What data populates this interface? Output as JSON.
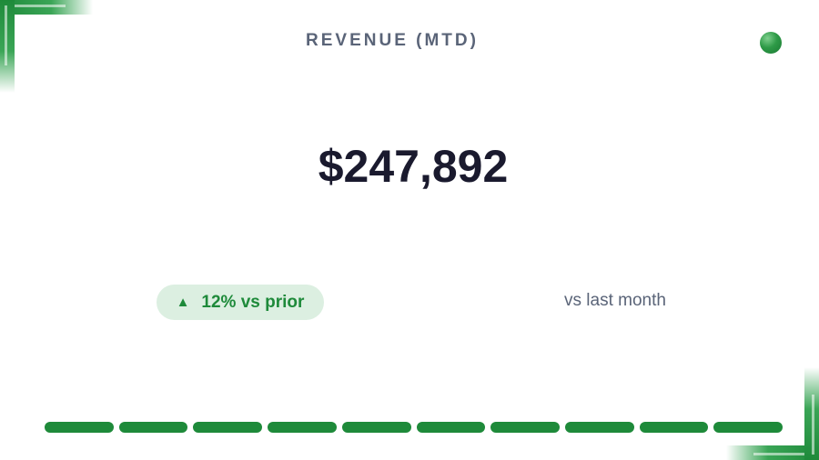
{
  "header": {
    "title": "REVENUE (MTD)"
  },
  "metric": {
    "value": "$247,892"
  },
  "change": {
    "arrow": "▲",
    "label": "12% vs prior",
    "icon": "arrow-up-icon",
    "color": "#1e8a3a"
  },
  "comparison": {
    "label": "vs last month"
  },
  "status_indicator": {
    "color": "#2e9a47"
  },
  "progress": {
    "segments_total": 10,
    "segments_filled": 10,
    "fraction": 1.0,
    "color": "#1e8a3a"
  }
}
